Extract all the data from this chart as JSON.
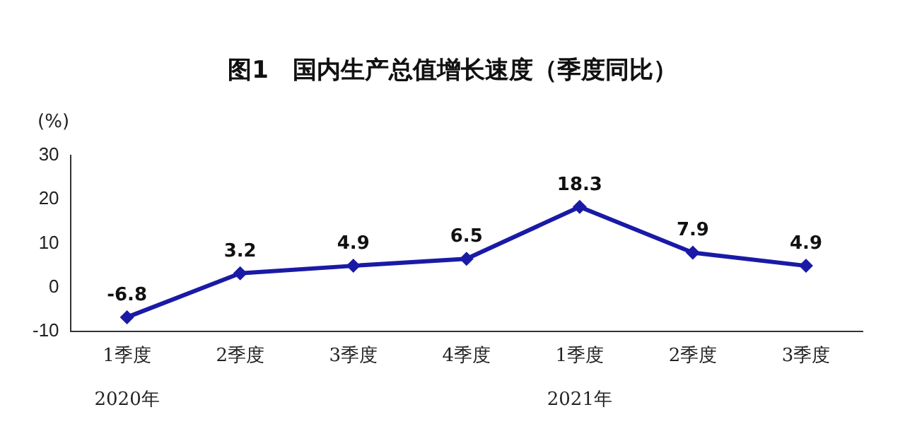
{
  "chart_data": {
    "type": "line",
    "title": "图1　国内生产总值增长速度（季度同比）",
    "ylabel": "(%)",
    "categories": [
      "1季度",
      "2季度",
      "3季度",
      "4季度",
      "1季度",
      "2季度",
      "3季度"
    ],
    "series": [
      {
        "color": "#1a1aa6",
        "values": [
          -6.8,
          3.2,
          4.9,
          6.5,
          18.3,
          7.9,
          4.9
        ]
      }
    ],
    "ylim": [
      -10,
      30
    ],
    "yticks": [
      -10,
      0,
      10,
      20,
      30
    ],
    "grid": false,
    "legend": false,
    "marker": "diamond",
    "line_style": "solid",
    "data_labels": true,
    "annotations": [
      "2020年",
      "2021年"
    ]
  }
}
